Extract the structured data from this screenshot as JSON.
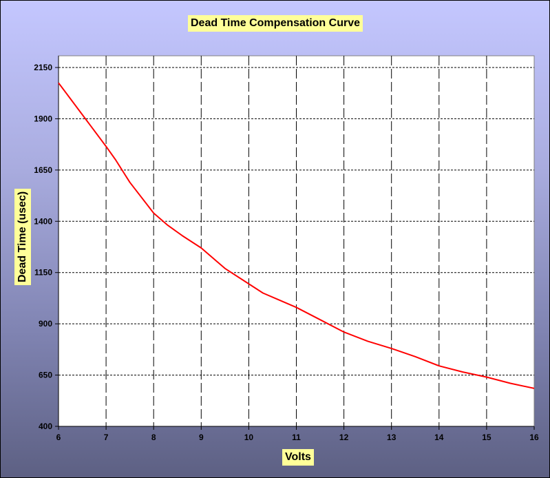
{
  "chart_data": {
    "type": "line",
    "title": "Dead Time Compensation Curve",
    "xlabel": "Volts",
    "ylabel": "Dead Time (usec)",
    "xlim": [
      6,
      16
    ],
    "ylim": [
      400,
      2150
    ],
    "x_ticks": [
      6,
      7,
      8,
      9,
      10,
      11,
      12,
      13,
      14,
      15,
      16
    ],
    "y_ticks": [
      400,
      650,
      900,
      1150,
      1400,
      1650,
      1900,
      2150
    ],
    "grid": true,
    "legend": "none",
    "series": [
      {
        "color": "#ff0000",
        "x": [
          6,
          6.5,
          7,
          7.2,
          7.5,
          8,
          8.3,
          8.6,
          9,
          9.5,
          10,
          10.3,
          10.6,
          11,
          11.5,
          12,
          12.5,
          13,
          13.5,
          14,
          14.5,
          15,
          15.5,
          16
        ],
        "y": [
          2075,
          1920,
          1765,
          1700,
          1590,
          1440,
          1380,
          1330,
          1270,
          1170,
          1095,
          1050,
          1020,
          980,
          920,
          860,
          815,
          780,
          740,
          695,
          665,
          640,
          610,
          585
        ]
      }
    ]
  }
}
